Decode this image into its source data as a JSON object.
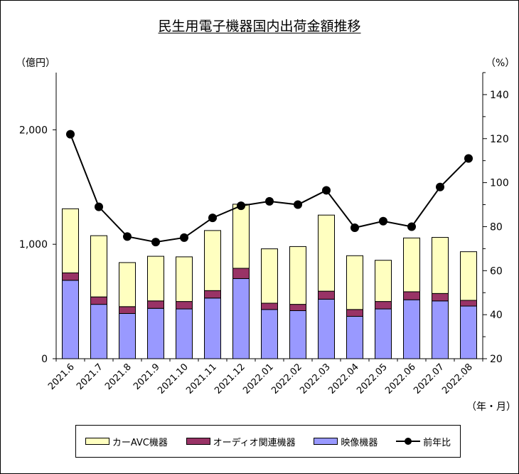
{
  "title": "民生用電子機器国内出荷金額推移",
  "unit_left": "（億円）",
  "unit_right": "（%）",
  "unit_x": "（年・月）",
  "legend": {
    "car_avc": "カーAVC機器",
    "audio": "オーディオ関連機器",
    "video": "映像機器",
    "yoy": "前年比"
  },
  "colors": {
    "car_avc": "#FFFFC0",
    "audio": "#993366",
    "video": "#9999FF",
    "line": "#000000"
  },
  "chart_data": {
    "type": "bar",
    "stacked": true,
    "categories": [
      "2021.6",
      "2021.7",
      "2021.8",
      "2021.9",
      "2021.10",
      "2021.11",
      "2021.12",
      "2022.01",
      "2022.02",
      "2022.03",
      "2022.04",
      "2022.05",
      "2022.06",
      "2022.07",
      "2022.08"
    ],
    "series": [
      {
        "name": "映像機器",
        "axis": "left",
        "values": [
          685,
          475,
          395,
          440,
          435,
          530,
          700,
          430,
          420,
          520,
          370,
          435,
          515,
          505,
          460
        ]
      },
      {
        "name": "オーディオ関連機器",
        "axis": "left",
        "values": [
          65,
          65,
          60,
          65,
          65,
          65,
          90,
          55,
          55,
          70,
          60,
          65,
          70,
          65,
          50
        ]
      },
      {
        "name": "カーAVC機器",
        "axis": "left",
        "values": [
          560,
          535,
          385,
          390,
          390,
          525,
          560,
          475,
          505,
          665,
          470,
          360,
          470,
          490,
          425
        ]
      },
      {
        "name": "前年比",
        "type": "line",
        "axis": "right",
        "values": [
          122,
          89,
          75.5,
          73,
          75,
          84,
          89.5,
          91.5,
          90,
          96.5,
          79.5,
          82.5,
          80,
          98,
          111
        ]
      }
    ],
    "y_left": {
      "range": [
        0,
        2500
      ],
      "ticks": [
        0,
        1000,
        2000
      ],
      "tick_labels": [
        "0",
        "1,000",
        "2,000"
      ]
    },
    "y_right": {
      "range": [
        20,
        150
      ],
      "ticks": [
        20,
        40,
        60,
        80,
        100,
        120,
        140
      ],
      "tick_labels": [
        "20",
        "40",
        "60",
        "80",
        "100",
        "120",
        "140"
      ]
    },
    "grid": false,
    "legend_position": "bottom"
  }
}
